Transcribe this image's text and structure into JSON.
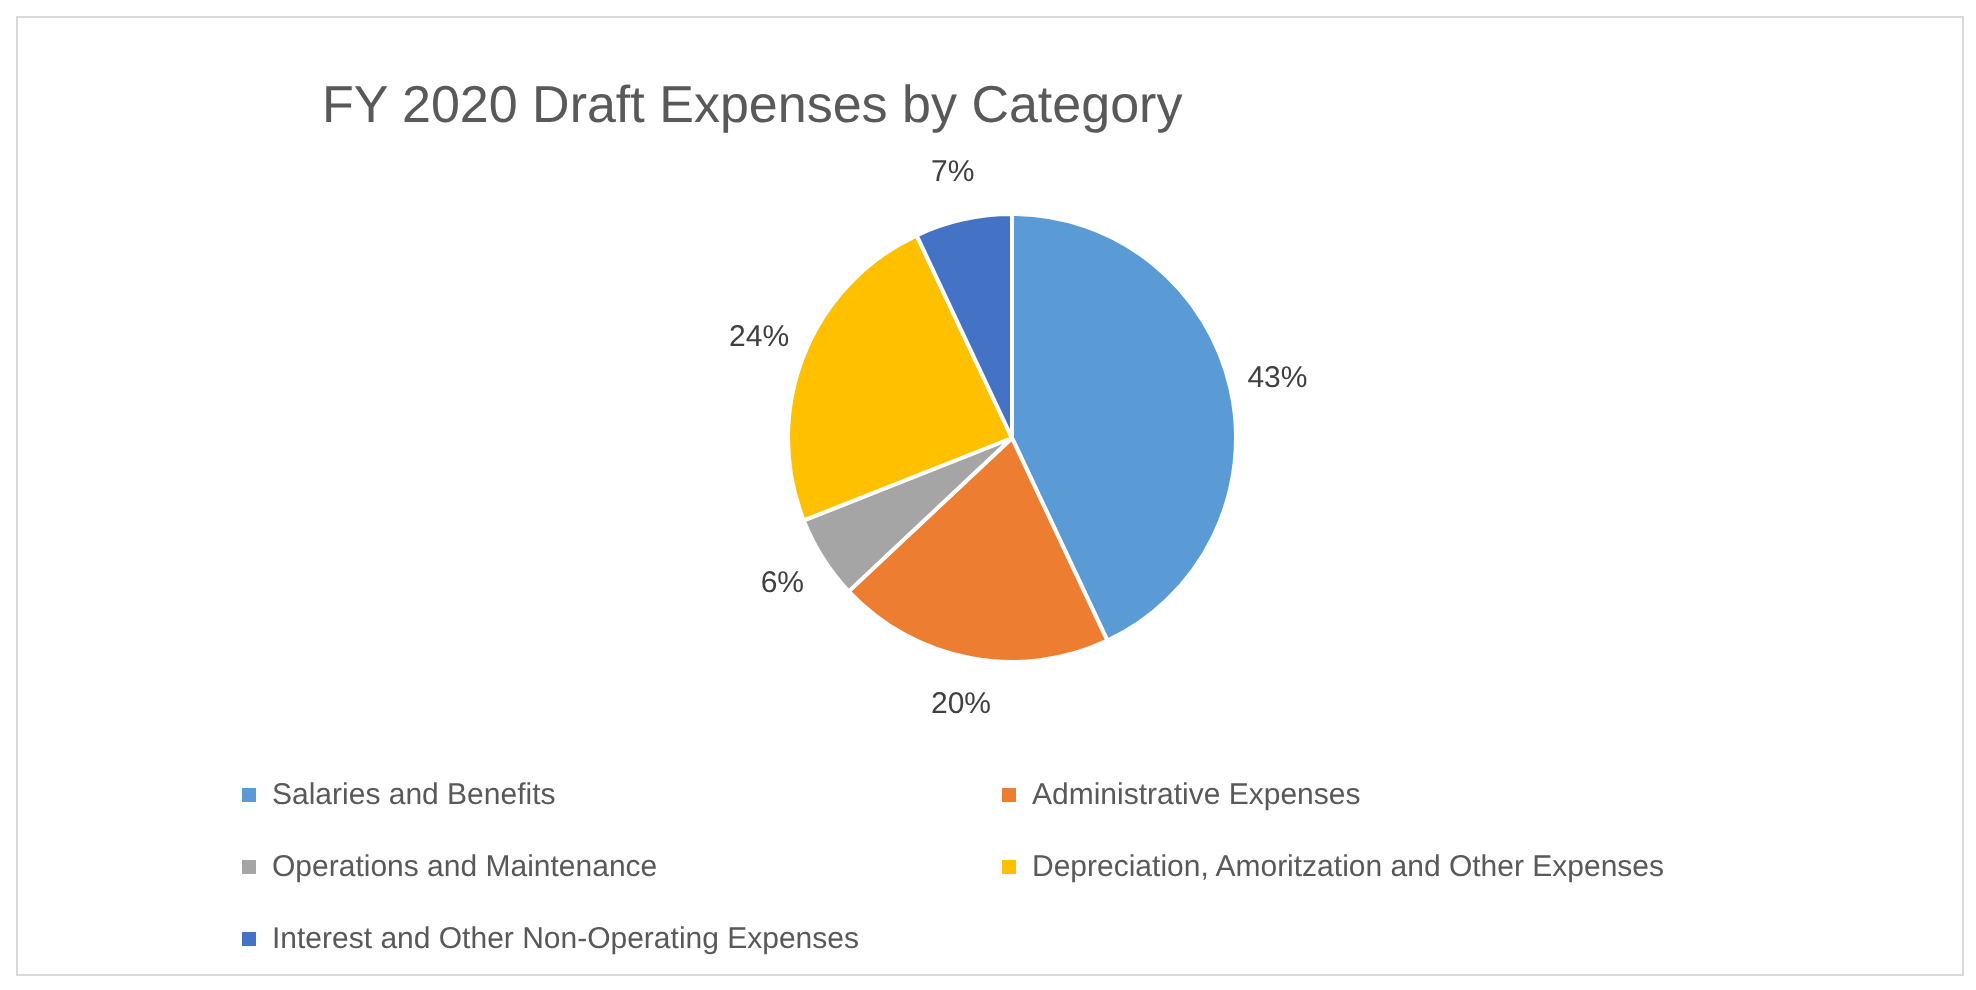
{
  "chart_data": {
    "type": "pie",
    "title": "FY 2020 Draft Expenses by Category",
    "categories": [
      "Salaries and Benefits",
      "Administrative Expenses",
      "Operations and Maintenance",
      "Depreciation, Amoritzation and Other Expenses",
      "Interest and Other Non-Operating Expenses"
    ],
    "values": [
      43,
      20,
      6,
      24,
      7
    ],
    "colors": [
      "#5b9bd5",
      "#ed7d31",
      "#a5a5a5",
      "#ffc000",
      "#4472c4"
    ],
    "value_labels": [
      "43%",
      "20%",
      "6%",
      "24%",
      "7%"
    ],
    "legend": "bottom"
  }
}
